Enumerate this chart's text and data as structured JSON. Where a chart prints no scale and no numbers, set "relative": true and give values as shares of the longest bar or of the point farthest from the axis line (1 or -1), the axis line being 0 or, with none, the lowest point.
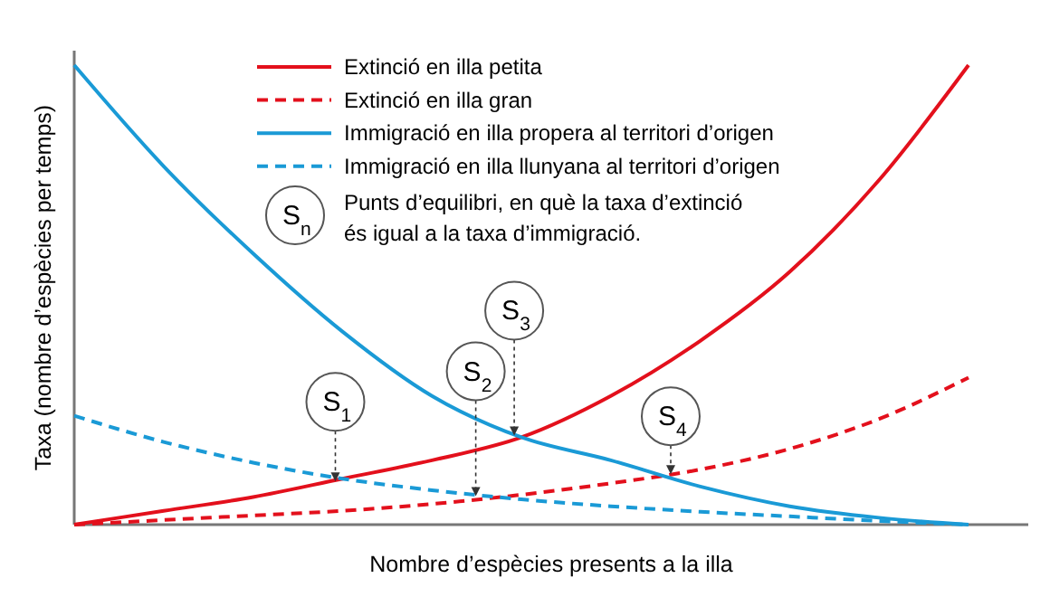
{
  "chart_data": {
    "type": "line",
    "relative": true,
    "xlabel": "Nombre d’espècies presents a la illa",
    "ylabel": "Taxa (nombre d’espècies per temps)",
    "categories": [
      null,
      null,
      null,
      null,
      null,
      null,
      null,
      null,
      null,
      null,
      null
    ],
    "series": [
      {
        "name": "Extinció en illa petita",
        "color": "#e3101c",
        "line_style": "solid",
        "values": [
          0,
          0.03,
          0.06,
          0.1,
          0.14,
          0.19,
          0.28,
          0.4,
          0.55,
          0.75,
          1
        ]
      },
      {
        "name": "Extinció en illa gran",
        "color": "#e3101c",
        "line_style": "dashed",
        "values": [
          0,
          0.01,
          0.02,
          0.03,
          0.045,
          0.065,
          0.09,
          0.12,
          0.165,
          0.23,
          0.32
        ]
      },
      {
        "name": "Immigració en illa propera al territori d’origen",
        "color": "#1a9ad6",
        "line_style": "solid",
        "values": [
          1,
          0.78,
          0.59,
          0.42,
          0.28,
          0.19,
          0.14,
          0.083,
          0.04,
          0.015,
          0
        ]
      },
      {
        "name": "Immigració en illa llunyana al territori d’origen",
        "color": "#1a9ad6",
        "line_style": "dashed",
        "values": [
          0.237,
          0.18,
          0.135,
          0.1,
          0.075,
          0.055,
          0.04,
          0.028,
          0.018,
          0.008,
          0
        ]
      }
    ],
    "legend": "top",
    "marker": "none",
    "annotations": [
      {
        "text": "S$_{1}$",
        "y": 0.09
      },
      {
        "text": "S$_{2}$",
        "y": 0.058
      },
      {
        "text": "S$_{3}$",
        "y": 0.19
      },
      {
        "text": "S$_{4}$",
        "y": 0.106
      },
      "S$_{n}$",
      "Punts d’equilibri, en què la taxa d’extinció és igual a la taxa d’immigració."
    ]
  }
}
